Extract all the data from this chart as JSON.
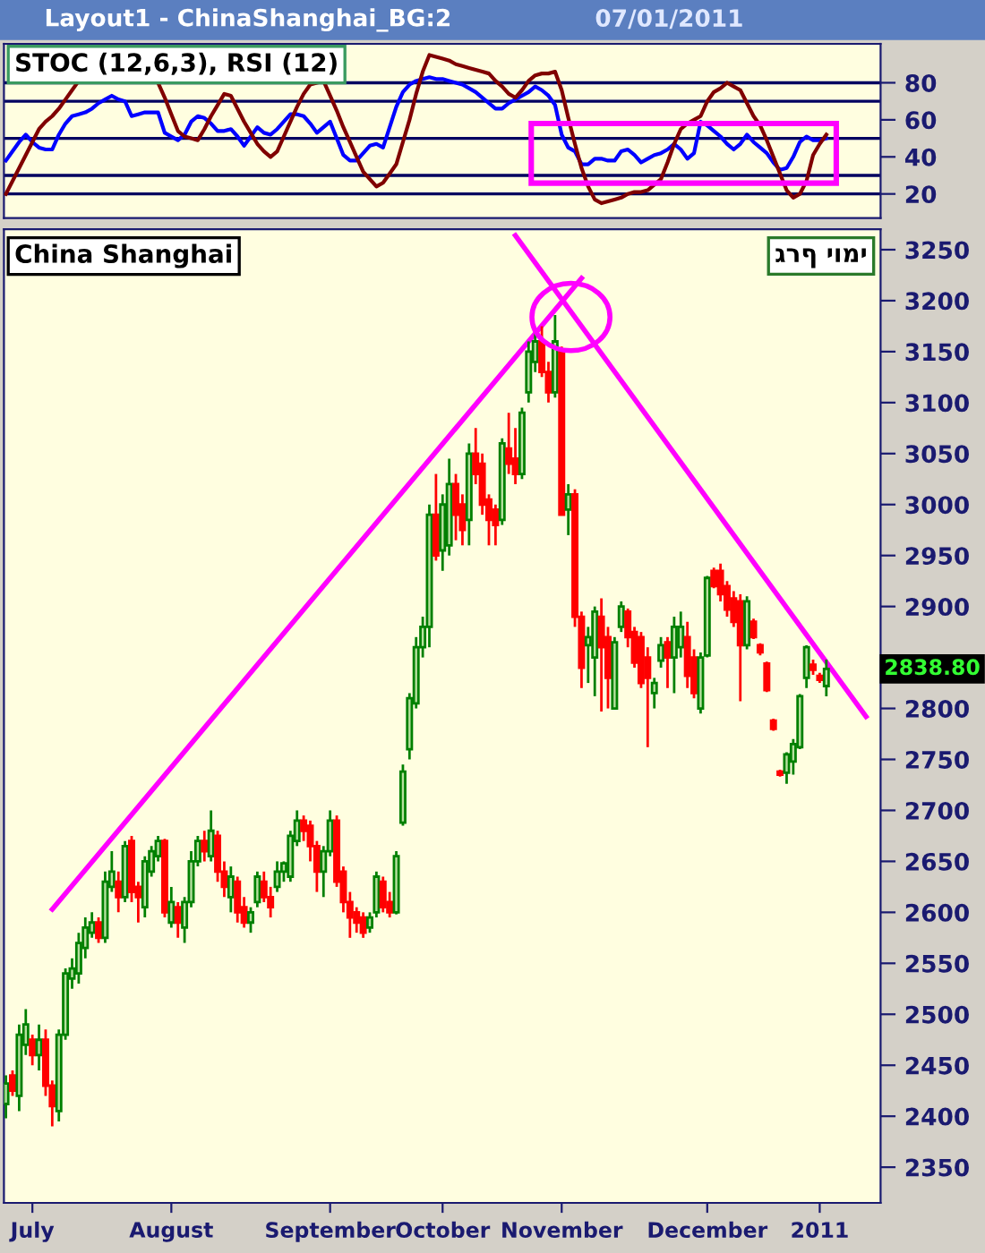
{
  "chart_data": [
    {
      "type": "line",
      "title": "STOC (12,6,3), RSI (12)",
      "annotations": [
        "Layout1 - ChinaShanghai_BG:2",
        "07/01/2011"
      ],
      "categories": [
        null,
        null,
        null,
        null,
        null,
        null,
        null,
        null,
        null,
        null,
        null,
        null,
        null,
        null,
        null,
        null,
        null,
        null,
        null,
        null,
        null,
        null,
        null,
        null,
        null,
        null,
        null,
        null,
        null,
        null,
        null,
        null,
        null,
        null,
        null,
        null,
        null,
        null,
        null,
        null,
        null,
        null,
        null,
        null,
        null,
        null,
        null,
        null,
        null,
        null,
        null,
        null,
        null,
        null,
        null,
        null,
        null,
        null,
        null,
        null,
        null,
        null,
        null,
        null,
        null,
        null,
        null,
        null,
        null,
        null,
        null,
        null,
        null,
        null,
        null,
        null,
        null,
        null,
        null,
        null,
        null,
        null,
        null,
        null,
        null,
        null,
        null,
        null,
        null,
        null,
        null,
        null,
        null,
        null,
        null,
        null,
        null,
        null,
        null,
        null,
        null,
        null,
        null,
        null,
        null,
        null,
        null,
        null,
        null,
        null,
        null,
        null,
        null,
        null,
        null,
        null,
        null,
        null,
        null,
        null,
        null,
        null,
        null,
        null,
        null,
        null,
        null,
        null,
        null,
        null,
        null
      ],
      "series": [
        {
          "color": "#0000ff",
          "values": [
            38,
            43,
            48,
            52,
            48,
            45,
            44,
            44,
            52,
            58,
            62,
            63,
            64,
            66,
            69,
            71,
            73,
            71,
            70,
            62,
            63,
            64,
            64,
            64,
            53,
            51,
            49,
            52,
            59,
            62,
            61,
            58,
            54,
            54,
            55,
            51,
            46,
            51,
            56,
            53,
            52,
            55,
            59,
            63,
            63,
            62,
            58,
            53,
            56,
            59,
            50,
            41,
            38,
            38,
            42,
            46,
            47,
            45,
            56,
            67,
            75,
            79,
            81,
            82,
            83,
            82,
            82,
            81,
            80,
            79,
            77,
            75,
            72,
            69,
            66,
            66,
            69,
            71,
            73,
            75,
            78,
            76,
            73,
            68,
            52,
            45,
            43,
            36,
            36,
            39,
            39,
            38,
            38,
            43,
            44,
            41,
            37,
            39,
            41,
            42,
            44,
            47,
            44,
            39,
            42,
            59,
            57,
            54,
            51,
            47,
            44,
            47,
            52,
            48,
            45,
            42,
            37,
            33,
            34,
            40,
            48,
            51,
            49,
            49,
            50,
            null,
            null,
            null,
            null,
            null,
            null
          ]
        },
        {
          "color": "#800000",
          "values": [
            20,
            27,
            34,
            41,
            48,
            55,
            59,
            62,
            66,
            71,
            76,
            81,
            null,
            null,
            null,
            null,
            null,
            null,
            null,
            null,
            null,
            null,
            null,
            80,
            72,
            63,
            54,
            51,
            50,
            49,
            55,
            62,
            68,
            74,
            73,
            66,
            59,
            53,
            47,
            43,
            40,
            43,
            51,
            59,
            67,
            74,
            79,
            80,
            81,
            73,
            65,
            56,
            48,
            40,
            32,
            28,
            24,
            26,
            31,
            36,
            48,
            60,
            74,
            86,
            95,
            94,
            93,
            92,
            90,
            89,
            88,
            87,
            86,
            85,
            81,
            78,
            74,
            72,
            76,
            81,
            84,
            85,
            85,
            86,
            76,
            61,
            47,
            34,
            24,
            17,
            15,
            16,
            17,
            18,
            20,
            21,
            21,
            22,
            25,
            28,
            37,
            47,
            55,
            58,
            60,
            62,
            70,
            75,
            77,
            80,
            78,
            76,
            69,
            62,
            57,
            49,
            40,
            31,
            22,
            18,
            20,
            27,
            41,
            47,
            52,
            null,
            null,
            null,
            null,
            null,
            null
          ]
        }
      ],
      "ylim": [
        7,
        101
      ],
      "yticks": [
        20,
        40,
        60,
        80
      ],
      "tick_labels": "y",
      "ref_lines": [
        {
          "axis": "y",
          "value": 20,
          "color": "#000060"
        },
        {
          "axis": "y",
          "value": 30,
          "color": "#000060"
        },
        {
          "axis": "y",
          "value": 50,
          "color": "#000060"
        },
        {
          "axis": "y",
          "value": 70,
          "color": "#000060"
        },
        {
          "axis": "y",
          "value": 80,
          "color": "#000060"
        }
      ]
    },
    {
      "type": "candlestick",
      "title": "China Shanghai",
      "subtitle": "גרף יומי",
      "categories": [
        null,
        null,
        null,
        null,
        "July",
        null,
        null,
        null,
        null,
        null,
        null,
        null,
        null,
        null,
        null,
        null,
        null,
        null,
        null,
        null,
        null,
        null,
        null,
        null,
        null,
        "August",
        null,
        null,
        null,
        null,
        null,
        null,
        null,
        null,
        null,
        null,
        null,
        null,
        null,
        null,
        null,
        null,
        null,
        null,
        null,
        null,
        null,
        null,
        null,
        "September",
        null,
        null,
        null,
        null,
        null,
        null,
        null,
        null,
        null,
        null,
        null,
        null,
        null,
        null,
        null,
        null,
        "October",
        null,
        null,
        null,
        null,
        null,
        null,
        null,
        null,
        null,
        null,
        null,
        null,
        null,
        null,
        null,
        null,
        null,
        "November",
        null,
        null,
        null,
        null,
        null,
        null,
        null,
        null,
        null,
        null,
        null,
        null,
        null,
        null,
        null,
        null,
        null,
        null,
        null,
        null,
        null,
        "December",
        null,
        null,
        null,
        null,
        null,
        null,
        null,
        null,
        null,
        null,
        null,
        null,
        null,
        null,
        null,
        null,
        "2011",
        null,
        null,
        null,
        null,
        null,
        null,
        null
      ],
      "ohlc": [
        [
          2412,
          2440,
          2398,
          2432
        ],
        [
          2440,
          2445,
          2420,
          2425
        ],
        [
          2420,
          2490,
          2405,
          2480
        ],
        [
          2470,
          2505,
          2460,
          2490
        ],
        [
          2475,
          2480,
          2450,
          2460
        ],
        [
          2460,
          2490,
          2445,
          2475
        ],
        [
          2475,
          2485,
          2420,
          2430
        ],
        [
          2430,
          2435,
          2390,
          2410
        ],
        [
          2405,
          2485,
          2395,
          2480
        ],
        [
          2480,
          2545,
          2475,
          2540
        ],
        [
          2535,
          2555,
          2525,
          2545
        ],
        [
          2540,
          2580,
          2530,
          2570
        ],
        [
          2565,
          2595,
          2555,
          2585
        ],
        [
          2580,
          2600,
          2575,
          2590
        ],
        [
          2590,
          2595,
          2570,
          2575
        ],
        [
          2575,
          2640,
          2570,
          2630
        ],
        [
          2625,
          2660,
          2620,
          2640
        ],
        [
          2630,
          2640,
          2600,
          2615
        ],
        [
          2615,
          2670,
          2610,
          2665
        ],
        [
          2670,
          2675,
          2610,
          2620
        ],
        [
          2625,
          2630,
          2590,
          2615
        ],
        [
          2605,
          2655,
          2595,
          2650
        ],
        [
          2640,
          2665,
          2635,
          2660
        ],
        [
          2655,
          2675,
          2650,
          2670
        ],
        [
          2670,
          2672,
          2595,
          2600
        ],
        [
          2590,
          2625,
          2585,
          2610
        ],
        [
          2605,
          2610,
          2575,
          2590
        ],
        [
          2585,
          2615,
          2570,
          2610
        ],
        [
          2610,
          2660,
          2605,
          2650
        ],
        [
          2650,
          2675,
          2645,
          2670
        ],
        [
          2670,
          2680,
          2650,
          2660
        ],
        [
          2655,
          2700,
          2650,
          2680
        ],
        [
          2675,
          2680,
          2630,
          2640
        ],
        [
          2640,
          2650,
          2615,
          2625
        ],
        [
          2615,
          2645,
          2600,
          2635
        ],
        [
          2630,
          2635,
          2590,
          2600
        ],
        [
          2605,
          2615,
          2585,
          2590
        ],
        [
          2590,
          2605,
          2580,
          2600
        ],
        [
          2610,
          2640,
          2605,
          2635
        ],
        [
          2630,
          2640,
          2610,
          2615
        ],
        [
          2615,
          2625,
          2595,
          2605
        ],
        [
          2625,
          2650,
          2620,
          2640
        ],
        [
          2640,
          2650,
          2630,
          2648
        ],
        [
          2635,
          2680,
          2630,
          2675
        ],
        [
          2670,
          2700,
          2665,
          2690
        ],
        [
          2690,
          2695,
          2670,
          2680
        ],
        [
          2685,
          2690,
          2650,
          2665
        ],
        [
          2665,
          2670,
          2620,
          2640
        ],
        [
          2640,
          2665,
          2615,
          2660
        ],
        [
          2660,
          2700,
          2655,
          2690
        ],
        [
          2690,
          2695,
          2625,
          2630
        ],
        [
          2640,
          2645,
          2600,
          2610
        ],
        [
          2610,
          2620,
          2575,
          2595
        ],
        [
          2600,
          2605,
          2580,
          2590
        ],
        [
          2595,
          2600,
          2575,
          2580
        ],
        [
          2585,
          2600,
          2580,
          2595
        ],
        [
          2600,
          2640,
          2595,
          2635
        ],
        [
          2630,
          2635,
          2600,
          2605
        ],
        [
          2610,
          2620,
          2595,
          2600
        ],
        [
          2600,
          2660,
          2598,
          2655
        ],
        [
          2688,
          2745,
          2685,
          2738
        ],
        [
          2760,
          2815,
          2750,
          2810
        ],
        [
          2805,
          2870,
          2800,
          2860
        ],
        [
          2860,
          2890,
          2850,
          2880
        ],
        [
          2880,
          3000,
          2860,
          2990
        ],
        [
          2990,
          3030,
          2945,
          2950
        ],
        [
          2955,
          3010,
          2935,
          3000
        ],
        [
          2960,
          3045,
          2950,
          3020
        ],
        [
          3020,
          3030,
          2965,
          2990
        ],
        [
          3000,
          3010,
          2960,
          2975
        ],
        [
          2985,
          3060,
          2960,
          3050
        ],
        [
          3050,
          3075,
          3020,
          3030
        ],
        [
          3040,
          3050,
          2990,
          3000
        ],
        [
          3005,
          3010,
          2960,
          2985
        ],
        [
          2995,
          3000,
          2960,
          2980
        ],
        [
          2985,
          3065,
          2980,
          3060
        ],
        [
          3055,
          3090,
          3030,
          3040
        ],
        [
          3045,
          3075,
          3020,
          3030
        ],
        [
          3030,
          3095,
          3025,
          3090
        ],
        [
          3110,
          3160,
          3100,
          3150
        ],
        [
          3140,
          3170,
          3130,
          3160
        ],
        [
          3160,
          3175,
          3125,
          3130
        ],
        [
          3130,
          3140,
          3100,
          3110
        ],
        [
          3110,
          3186,
          3105,
          3160
        ],
        [
          3150,
          3155,
          2990,
          2990
        ],
        [
          2995,
          3020,
          2970,
          3010
        ],
        [
          3010,
          3015,
          2880,
          2890
        ],
        [
          2890,
          2895,
          2820,
          2840
        ],
        [
          2862,
          2880,
          2825,
          2870
        ],
        [
          2850,
          2900,
          2812,
          2895
        ],
        [
          2890,
          2908,
          2797,
          2860
        ],
        [
          2870,
          2880,
          2800,
          2830
        ],
        [
          2800,
          2870,
          2800,
          2865
        ],
        [
          2880,
          2905,
          2875,
          2900
        ],
        [
          2895,
          2898,
          2860,
          2870
        ],
        [
          2875,
          2880,
          2840,
          2845
        ],
        [
          2870,
          2875,
          2820,
          2825
        ],
        [
          2850,
          2860,
          2762,
          2830
        ],
        [
          2815,
          2830,
          2800,
          2825
        ],
        [
          2847,
          2870,
          2840,
          2862
        ],
        [
          2865,
          2870,
          2820,
          2850
        ],
        [
          2850,
          2890,
          2815,
          2880
        ],
        [
          2860,
          2895,
          2850,
          2880
        ],
        [
          2870,
          2885,
          2820,
          2832
        ],
        [
          2850,
          2858,
          2810,
          2815
        ],
        [
          2800,
          2855,
          2795,
          2850
        ],
        [
          2852,
          2930,
          2850,
          2928
        ],
        [
          2935,
          2938,
          2918,
          2920
        ],
        [
          2935,
          2942,
          2905,
          2912
        ],
        [
          2920,
          2925,
          2890,
          2897
        ],
        [
          2908,
          2915,
          2880,
          2885
        ],
        [
          2905,
          2912,
          2807,
          2862
        ],
        [
          2862,
          2910,
          2858,
          2905
        ],
        [
          2885,
          2888,
          2868,
          2870
        ],
        [
          2862,
          2864,
          2852,
          2855
        ],
        [
          2844,
          2846,
          2816,
          2818
        ],
        [
          2788,
          2790,
          2778,
          2780
        ],
        [
          2738,
          2740,
          2733,
          2735
        ],
        [
          2737,
          2757,
          2726,
          2755
        ],
        [
          2748,
          2770,
          2735,
          2765
        ],
        [
          2762,
          2814,
          2760,
          2812
        ],
        [
          2830,
          2862,
          2820,
          2860
        ],
        [
          2843,
          2848,
          2833,
          2838
        ],
        [
          2832,
          2835,
          2825,
          2828
        ],
        [
          2822,
          2848,
          2812,
          2838.8
        ],
        null,
        null,
        null,
        null,
        null,
        null
      ],
      "series": [
        {
          "type": "line",
          "color": "#ff00ff",
          "values": [
            null,
            null,
            null,
            null,
            null,
            null,
            null,
            2603,
            null,
            null,
            null,
            null,
            null,
            null,
            null,
            null,
            null,
            null,
            null,
            null,
            null,
            null,
            null,
            null,
            null,
            null,
            null,
            null,
            null,
            null,
            null,
            null,
            null,
            null,
            null,
            null,
            null,
            null,
            null,
            null,
            null,
            null,
            null,
            null,
            null,
            null,
            null,
            null,
            null,
            null,
            null,
            null,
            null,
            null,
            null,
            null,
            null,
            null,
            null,
            null,
            null,
            null,
            null,
            null,
            null,
            null,
            null,
            null,
            null,
            null,
            null,
            null,
            null,
            null,
            null,
            null,
            null,
            null,
            null,
            null,
            null,
            null,
            null,
            null,
            null,
            null,
            null,
            3222,
            null,
            null,
            null,
            null,
            null,
            null,
            null,
            null,
            null,
            null,
            null,
            null,
            null,
            null,
            null,
            null,
            null,
            null,
            null,
            null,
            null,
            null,
            null,
            null,
            null,
            null,
            null,
            null,
            null,
            null,
            null,
            null,
            null,
            null,
            null,
            null,
            null,
            null,
            null,
            null,
            null,
            null,
            null
          ]
        },
        {
          "type": "line",
          "color": "#ff00ff",
          "values": [
            null,
            null,
            null,
            null,
            null,
            null,
            null,
            null,
            null,
            null,
            null,
            null,
            null,
            null,
            null,
            null,
            null,
            null,
            null,
            null,
            null,
            null,
            null,
            null,
            null,
            null,
            null,
            null,
            null,
            null,
            null,
            null,
            null,
            null,
            null,
            null,
            null,
            null,
            null,
            null,
            null,
            null,
            null,
            null,
            null,
            null,
            null,
            null,
            null,
            null,
            null,
            null,
            null,
            null,
            null,
            null,
            null,
            null,
            null,
            null,
            null,
            null,
            null,
            null,
            null,
            null,
            null,
            null,
            null,
            null,
            null,
            null,
            null,
            null,
            null,
            null,
            null,
            3264,
            null,
            null,
            null,
            null,
            null,
            null,
            null,
            null,
            null,
            null,
            null,
            null,
            null,
            null,
            null,
            null,
            null,
            null,
            null,
            null,
            null,
            null,
            null,
            null,
            null,
            null,
            null,
            null,
            null,
            null,
            null,
            null,
            null,
            null,
            null,
            null,
            null,
            null,
            null,
            null,
            null,
            null,
            null,
            null,
            null,
            null,
            null,
            null,
            null,
            null,
            null,
            null,
            2792
          ]
        }
      ],
      "ylim": [
        2315,
        3270
      ],
      "yticks": [
        2350,
        2400,
        2450,
        2500,
        2550,
        2600,
        2650,
        2700,
        2750,
        2800,
        2900,
        2950,
        3000,
        3050,
        3100,
        3150,
        3200,
        3250
      ],
      "annotations": [
        "2838.80"
      ]
    }
  ]
}
